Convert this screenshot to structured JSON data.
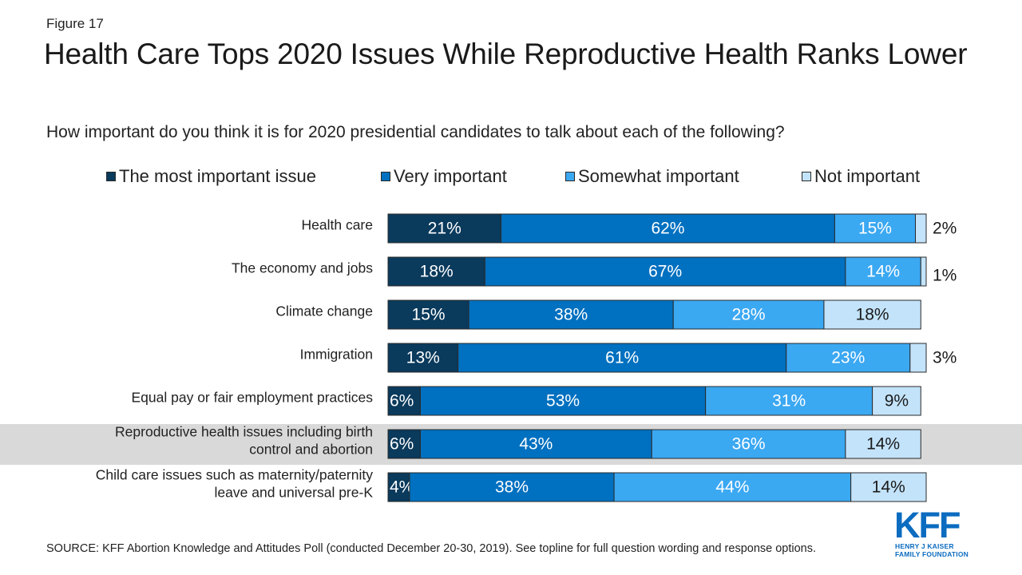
{
  "header": {
    "figure_label": "Figure 17",
    "title": "Health Care Tops 2020 Issues While Reproductive Health Ranks Lower",
    "subtitle": "How important do you think it is for 2020 presidential candidates to talk about each of the following?"
  },
  "colors": {
    "most_important": "#0a3a5c",
    "very_important": "#0070c0",
    "somewhat_important": "#3ba8f2",
    "not_important": "#c3e3fa",
    "highlight_band": "#d9d9d9",
    "brand": "#0b6cc0"
  },
  "chart_data": {
    "type": "bar",
    "orientation": "horizontal",
    "stacked": true,
    "categories": [
      "Health care",
      "The economy and jobs",
      "Climate change",
      "Immigration",
      "Equal pay or fair employment practices",
      "Reproductive health issues including birth control and abortion",
      "Child care issues such as maternity/paternity leave and universal pre-K"
    ],
    "category_lines": [
      [
        "Health care"
      ],
      [
        "The economy and jobs"
      ],
      [
        "Climate change"
      ],
      [
        "Immigration"
      ],
      [
        "Equal pay or fair employment practices"
      ],
      [
        "Reproductive health issues including birth",
        "control and abortion"
      ],
      [
        "Child care issues such as maternity/paternity",
        "leave and universal pre-K"
      ]
    ],
    "highlighted_category": "Reproductive health issues including birth control and abortion",
    "series": [
      {
        "name": "The most important issue",
        "values": [
          21,
          18,
          15,
          13,
          6,
          6,
          4
        ]
      },
      {
        "name": "Very important",
        "values": [
          62,
          67,
          38,
          61,
          53,
          43,
          38
        ]
      },
      {
        "name": "Somewhat important",
        "values": [
          15,
          14,
          28,
          23,
          31,
          36,
          44
        ]
      },
      {
        "name": "Not important",
        "values": [
          2,
          1,
          18,
          3,
          9,
          14,
          14
        ]
      }
    ],
    "value_format": "{v}%",
    "legend_position": "top",
    "xlim": [
      0,
      100
    ],
    "grid": false
  },
  "footer": {
    "source": "SOURCE: KFF Abortion Knowledge and Attitudes Poll (conducted December 20-30, 2019). See topline for full question wording and response options."
  },
  "logo": {
    "name": "KFF",
    "line1": "HENRY J KAISER",
    "line2": "FAMILY FOUNDATION"
  }
}
